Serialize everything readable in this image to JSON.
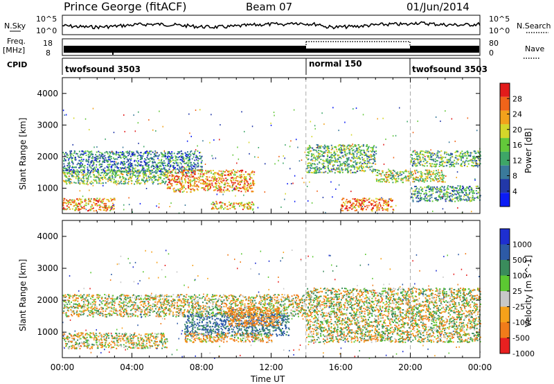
{
  "header": {
    "station": "Prince George (fitACF)",
    "beam": "Beam 07",
    "date": "01/Jun/2014"
  },
  "top_panels": {
    "nsky_label": "N.Sky",
    "nsearch_label": "N.Search",
    "nsky_ticks": [
      "10^5",
      "10^0"
    ],
    "nsearch_ticks": [
      "10^5",
      "10^0"
    ],
    "freq_label_1": "Freq.",
    "freq_label_2": "[MHz]",
    "freq_ticks": [
      "18",
      "8"
    ],
    "nave_ticks": [
      "80",
      "0"
    ],
    "nave_label": "Nave",
    "cpid_label": "CPID",
    "cpid_segments": [
      {
        "name": "twofsound 3503",
        "start_hr": 0,
        "end_hr": 14
      },
      {
        "name": "normal 150",
        "start_hr": 14,
        "end_hr": 20
      },
      {
        "name": "twofsound 3503",
        "start_hr": 20,
        "end_hr": 24
      }
    ]
  },
  "chart_data": [
    {
      "type": "heatmap",
      "title": "",
      "xlabel": "Time UT",
      "ylabel": "Slant Range [km]",
      "xlim": [
        0,
        24
      ],
      "ylim": [
        200,
        4500
      ],
      "x_ticks": [
        "00:00",
        "04:00",
        "08:00",
        "12:00",
        "16:00",
        "20:00",
        "00:00"
      ],
      "y_ticks": [
        1000,
        2000,
        3000,
        4000
      ],
      "colorbar_label": "Power [dB]",
      "colorbar_ticks": [
        4,
        8,
        12,
        16,
        20,
        24,
        28
      ],
      "colorbar_range": [
        0,
        32
      ],
      "colors": [
        "#0b1cf5",
        "#2238a8",
        "#3a7a9b",
        "#3ea667",
        "#63c83a",
        "#d4d72a",
        "#f2a21c",
        "#f0641a",
        "#e21b1b"
      ],
      "regions": [
        {
          "t0": 0.0,
          "t1": 3.0,
          "r0": 300,
          "r1": 700,
          "level": 24
        },
        {
          "t0": 0.0,
          "t1": 6.0,
          "r0": 1150,
          "r1": 1600,
          "level": 16
        },
        {
          "t0": 0.0,
          "t1": 8.0,
          "r0": 1500,
          "r1": 2200,
          "level": 10
        },
        {
          "t0": 6.0,
          "t1": 11.0,
          "r0": 900,
          "r1": 1600,
          "level": 24
        },
        {
          "t0": 8.5,
          "t1": 11.0,
          "r0": 350,
          "r1": 600,
          "level": 22
        },
        {
          "t0": 14.0,
          "t1": 18.0,
          "r0": 1500,
          "r1": 2400,
          "level": 14
        },
        {
          "t0": 16.0,
          "t1": 19.0,
          "r0": 300,
          "r1": 700,
          "level": 26
        },
        {
          "t0": 18.0,
          "t1": 22.0,
          "r0": 1200,
          "r1": 1600,
          "level": 18
        },
        {
          "t0": 20.0,
          "t1": 24.0,
          "r0": 1700,
          "r1": 2200,
          "level": 14
        },
        {
          "t0": 20.0,
          "t1": 24.0,
          "r0": 600,
          "r1": 1100,
          "level": 12
        }
      ]
    },
    {
      "type": "heatmap",
      "title": "",
      "xlabel": "Time UT",
      "ylabel": "Slant Range [km]",
      "xlim": [
        0,
        24
      ],
      "ylim": [
        200,
        4500
      ],
      "x_ticks": [
        "00:00",
        "04:00",
        "08:00",
        "12:00",
        "16:00",
        "20:00",
        "00:00"
      ],
      "y_ticks": [
        1000,
        2000,
        3000,
        4000
      ],
      "colorbar_label": "Velocity [m s^-1]",
      "colorbar_ticks": [
        "1000",
        "500",
        "100",
        "25",
        "-25",
        "-100",
        "-500",
        "-1000"
      ],
      "colors": [
        "#1e2fd0",
        "#2d5aa6",
        "#3a8c5c",
        "#5cc832",
        "#c8c8c8",
        "#f6a11a",
        "#f07c1a",
        "#e82020"
      ],
      "regions": [
        {
          "t0": 0.0,
          "t1": 14.0,
          "r0": 1500,
          "r1": 2200,
          "velocity": 0
        },
        {
          "t0": 0.0,
          "t1": 6.0,
          "r0": 500,
          "r1": 1000,
          "velocity": 0
        },
        {
          "t0": 7.0,
          "t1": 13.0,
          "r0": 900,
          "r1": 1600,
          "velocity": 300
        },
        {
          "t0": 9.5,
          "t1": 12.5,
          "r0": 1200,
          "r1": 1800,
          "velocity": -200
        },
        {
          "t0": 14.0,
          "t1": 24.0,
          "r0": 700,
          "r1": 2400,
          "velocity": 0
        },
        {
          "t0": 7.0,
          "t1": 12.0,
          "r0": 700,
          "r1": 1000,
          "velocity": -80
        }
      ]
    }
  ]
}
